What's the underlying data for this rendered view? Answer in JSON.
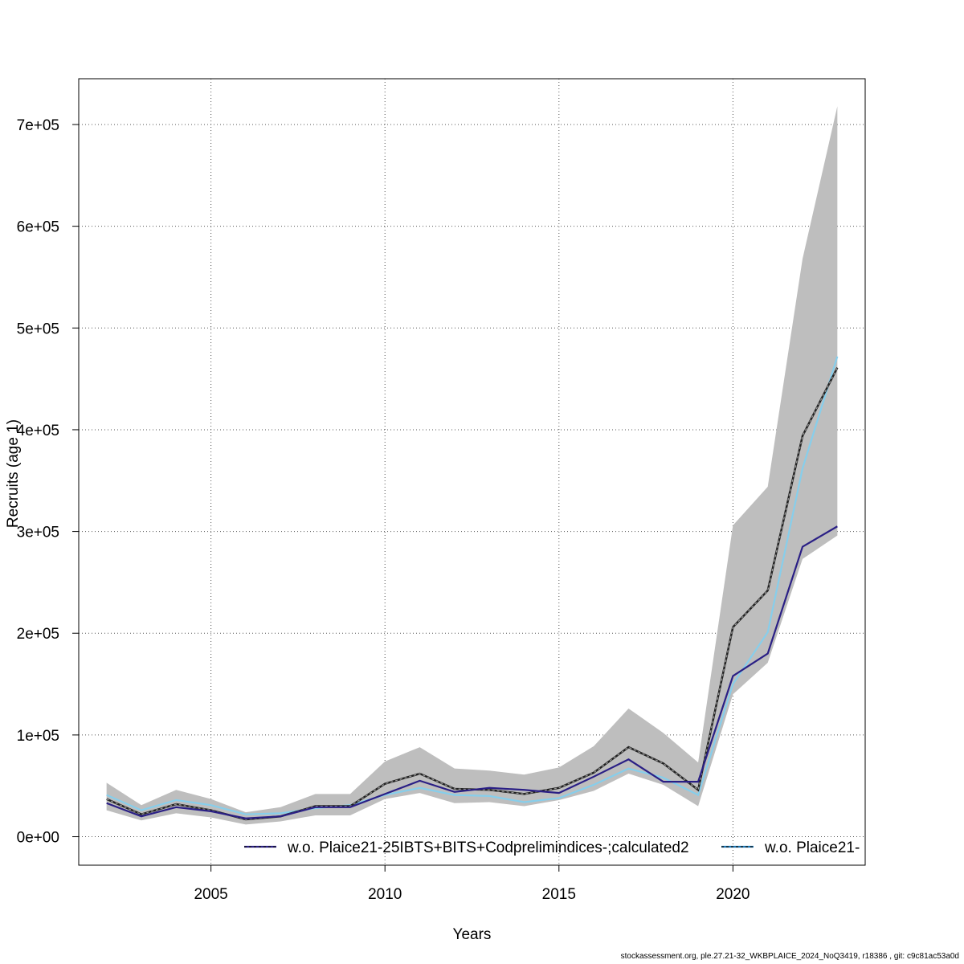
{
  "chart_data": {
    "type": "line",
    "xlabel": "Years",
    "ylabel": "Recruits (age 1)",
    "xlim": [
      2001.2,
      2023.8
    ],
    "ylim": [
      -28000,
      745000
    ],
    "x_ticks": [
      2005,
      2010,
      2015,
      2020
    ],
    "x_tick_labels": [
      "2005",
      "2010",
      "2015",
      "2020"
    ],
    "y_ticks": [
      0,
      100000,
      200000,
      300000,
      400000,
      500000,
      600000,
      700000
    ],
    "y_tick_labels": [
      "0e+00",
      "1e+05",
      "2e+05",
      "3e+05",
      "4e+05",
      "5e+05",
      "6e+05",
      "7e+05"
    ],
    "grid": true,
    "legend_position": "bottom",
    "x": [
      2002,
      2003,
      2004,
      2005,
      2006,
      2007,
      2008,
      2009,
      2010,
      2011,
      2012,
      2013,
      2014,
      2015,
      2016,
      2017,
      2018,
      2019,
      2020,
      2021,
      2022,
      2023
    ],
    "band": {
      "color": "#bebebe",
      "lower": [
        26000,
        16000,
        23000,
        19000,
        12000,
        15000,
        21000,
        21000,
        37000,
        43000,
        33000,
        34000,
        30000,
        36000,
        45000,
        62000,
        51000,
        30000,
        140000,
        171000,
        273000,
        296000
      ],
      "upper": [
        53000,
        31000,
        46000,
        37000,
        24000,
        29000,
        42000,
        42000,
        74000,
        88000,
        67000,
        65000,
        61000,
        68000,
        89000,
        126000,
        102000,
        73000,
        306000,
        344000,
        568000,
        718000
      ]
    },
    "series": [
      {
        "name": "",
        "color": "#222222",
        "style": "dashed-on-dark",
        "values": [
          37000,
          22000,
          32000,
          26000,
          17000,
          20000,
          30000,
          30000,
          52000,
          62000,
          47000,
          46000,
          42000,
          48000,
          63000,
          88000,
          72000,
          46000,
          206000,
          242000,
          394000,
          461000
        ]
      },
      {
        "name": "w.o. Plaice21-25IBTS+BITS+Codprelimindices-;calculated2",
        "color": "#2a1f85",
        "style": "solid",
        "values": [
          33000,
          20000,
          29000,
          25000,
          18000,
          20000,
          29000,
          29000,
          42000,
          55000,
          44000,
          48000,
          46000,
          43000,
          59000,
          76000,
          54000,
          54000,
          158000,
          180000,
          285000,
          305000
        ]
      },
      {
        "name": "w.o. Plaice21-",
        "color": "#87ceeb",
        "style": "solid",
        "values": [
          41000,
          26000,
          36000,
          31000,
          22000,
          23000,
          28000,
          31000,
          41000,
          48000,
          41000,
          40000,
          34000,
          38000,
          51000,
          67000,
          58000,
          41000,
          150000,
          201000,
          362000,
          472000
        ]
      }
    ],
    "legend": [
      {
        "label": "w.o. Plaice21-25IBTS+BITS+Codprelimindices-;calculated2",
        "line_color": "#2a1f85"
      },
      {
        "label": "w.o. Plaice21-",
        "line_color": "#1f78b4"
      }
    ]
  },
  "footer": "stockassessment.org, ple.27.21-32_WKBPLAICE_2024_NoQ3419, r18386 , git: c9c81ac53a0d"
}
